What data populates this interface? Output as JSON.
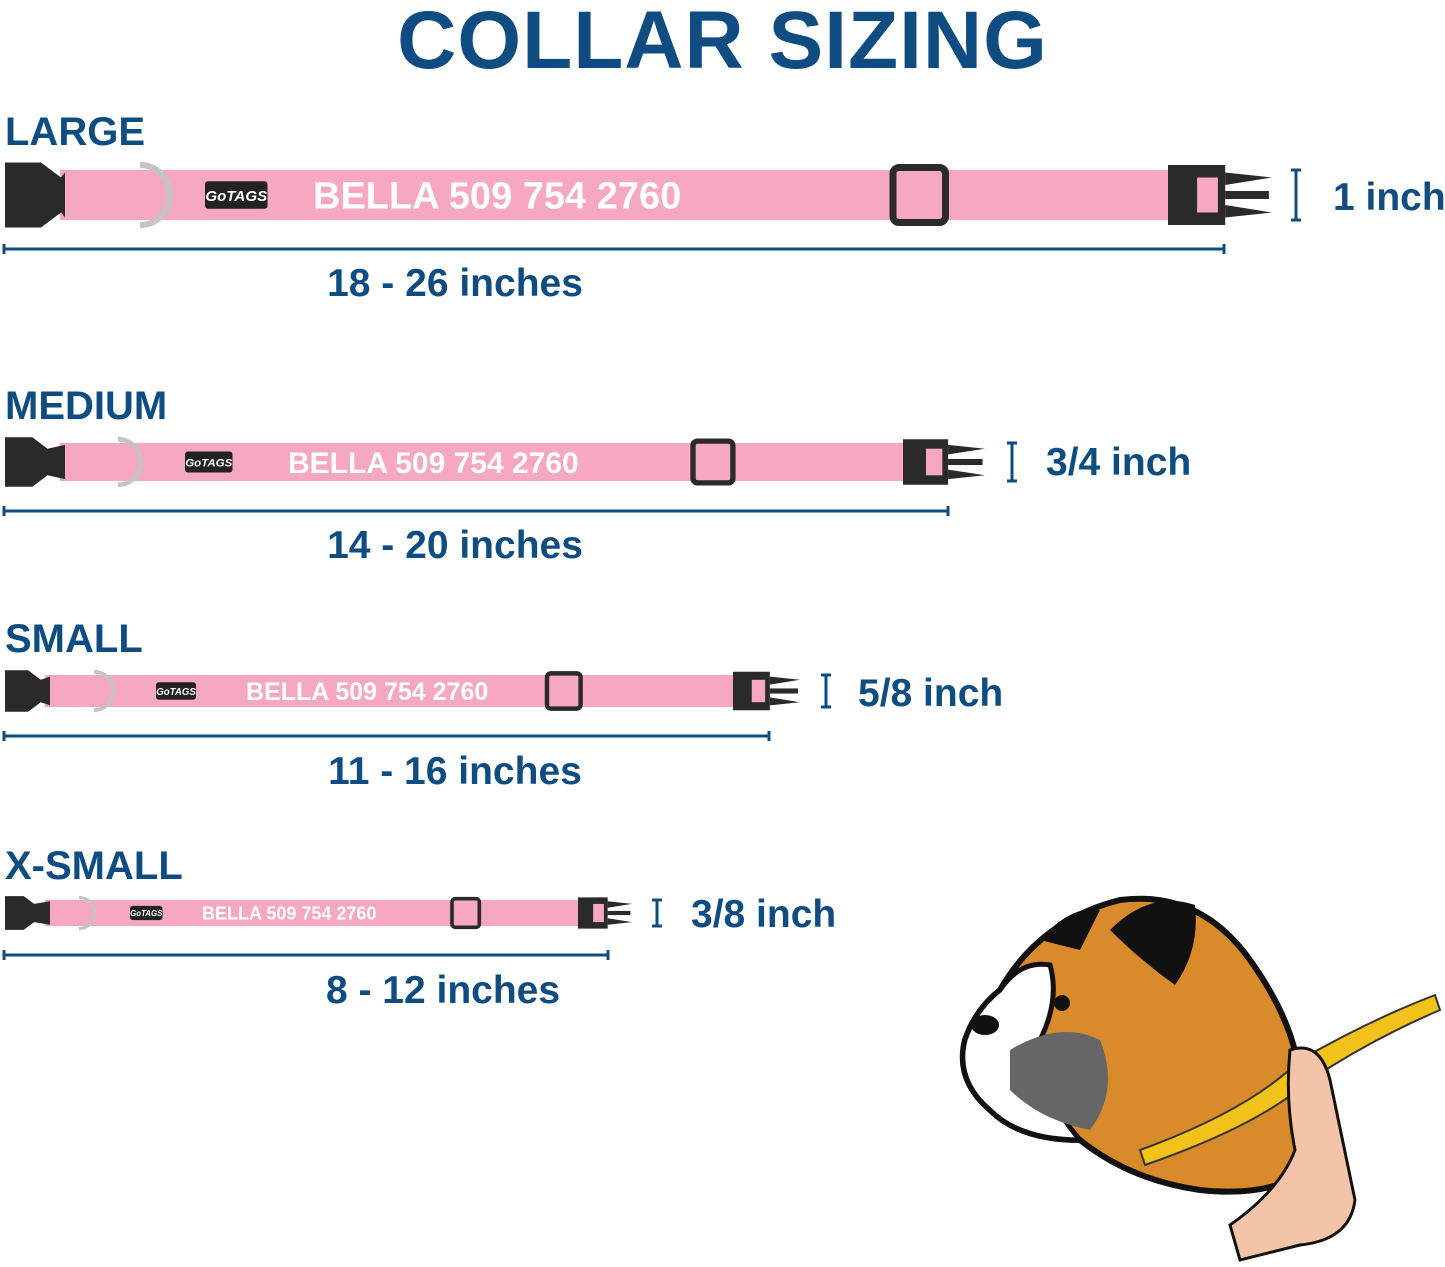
{
  "title": "COLLAR SIZING",
  "colors": {
    "text": "#0f4c81",
    "strap": "#f5a8c0",
    "buckle": "#2a2a2a",
    "ring": "#c4c4c4"
  },
  "collar_text": "BELLA 509 754 2760",
  "brand_logo": "GoTAGS",
  "sizes": [
    {
      "name": "LARGE",
      "range": "18 - 26 inches",
      "width": "1 inch"
    },
    {
      "name": "MEDIUM",
      "range": "14 - 20 inches",
      "width": "3/4 inch"
    },
    {
      "name": "SMALL",
      "range": "11 - 16 inches",
      "width": "5/8 inch"
    },
    {
      "name": "X-SMALL",
      "range": "8 - 12 inches",
      "width": "3/8 inch"
    }
  ],
  "illustration": "boxer-dog-neck-measurement"
}
